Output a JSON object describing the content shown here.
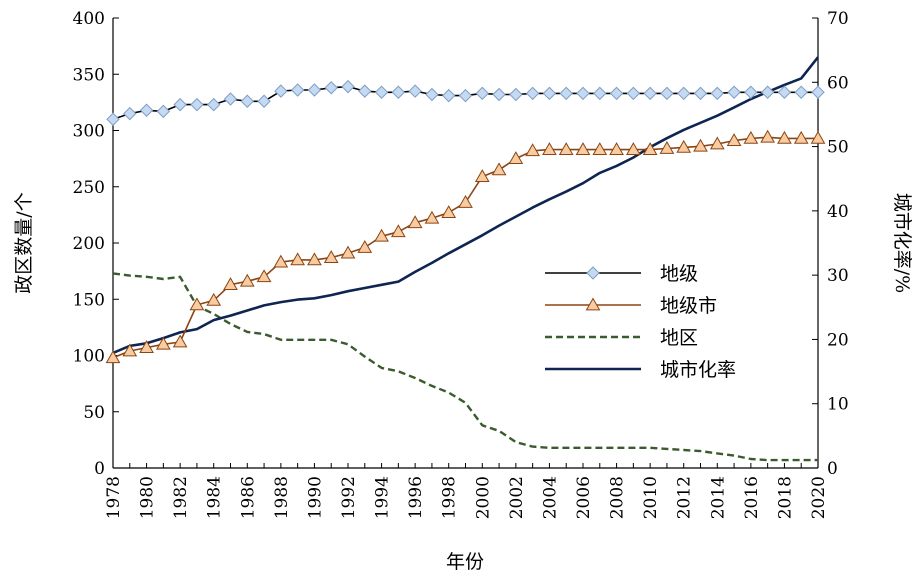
{
  "chart_data": {
    "type": "line",
    "title": "",
    "xlabel": "年份",
    "ylabel_left": "政区数量/个",
    "ylabel_right": "城市化率/%",
    "ylim_left": [
      0,
      400
    ],
    "ylim_right": [
      0,
      70
    ],
    "yticks_left": [
      0,
      50,
      100,
      150,
      200,
      250,
      300,
      350,
      400
    ],
    "yticks_right": [
      0,
      10,
      20,
      30,
      40,
      50,
      60,
      70
    ],
    "xlim": [
      1978,
      2020
    ],
    "xticks": [
      "1978",
      "1980",
      "1982",
      "1984",
      "1986",
      "1988",
      "1990",
      "1992",
      "1994",
      "1996",
      "1998",
      "2000",
      "2002",
      "2004",
      "2006",
      "2008",
      "2010",
      "2012",
      "2014",
      "2016",
      "2018",
      "2020"
    ],
    "grid": false,
    "legend_position": "center-right",
    "x": [
      1978,
      1979,
      1980,
      1981,
      1982,
      1983,
      1984,
      1985,
      1986,
      1987,
      1988,
      1989,
      1990,
      1991,
      1992,
      1993,
      1994,
      1995,
      1996,
      1997,
      1998,
      1999,
      2000,
      2001,
      2002,
      2003,
      2004,
      2005,
      2006,
      2007,
      2008,
      2009,
      2010,
      2011,
      2012,
      2013,
      2014,
      2015,
      2016,
      2017,
      2018,
      2019,
      2020
    ],
    "series": [
      {
        "name": "地级",
        "axis": "left",
        "color": "#000000",
        "marker": "diamond",
        "marker_fill": "#c5d9f1",
        "marker_stroke": "#7f9fc8",
        "dash": "solid",
        "values": [
          310,
          315,
          318,
          317,
          323,
          323,
          323,
          328,
          326,
          326,
          335,
          336,
          336,
          338,
          339,
          335,
          334,
          334,
          335,
          332,
          331,
          331,
          333,
          332,
          332,
          333,
          333,
          333,
          333,
          333,
          333,
          333,
          333,
          333,
          333,
          333,
          333,
          334,
          334,
          334,
          334,
          334,
          334
        ]
      },
      {
        "name": "地级市",
        "axis": "left",
        "color": "#8b4513",
        "marker": "triangle",
        "marker_fill": "#f8cba0",
        "marker_stroke": "#8b4513",
        "dash": "solid",
        "values": [
          98,
          104,
          107,
          110,
          112,
          145,
          149,
          163,
          166,
          170,
          183,
          185,
          185,
          187,
          191,
          196,
          206,
          210,
          218,
          222,
          227,
          236,
          259,
          265,
          275,
          282,
          283,
          283,
          283,
          283,
          283,
          283,
          283,
          284,
          285,
          286,
          288,
          291,
          293,
          294,
          293,
          293,
          293
        ]
      },
      {
        "name": "地区",
        "axis": "left",
        "color": "#3a5b2e",
        "marker": "none",
        "dash": "dashed",
        "values": [
          173,
          171,
          170,
          168,
          170,
          144,
          137,
          128,
          121,
          119,
          114,
          114,
          114,
          114,
          110,
          99,
          89,
          86,
          80,
          73,
          67,
          58,
          38,
          33,
          23,
          19,
          18,
          18,
          18,
          18,
          18,
          18,
          18,
          17,
          16,
          15,
          13,
          11,
          8,
          7,
          7,
          7,
          7
        ]
      },
      {
        "name": "城市化率",
        "axis": "right",
        "color": "#0e2552",
        "marker": "none",
        "dash": "solid",
        "values": [
          17.9,
          19.0,
          19.4,
          20.2,
          21.1,
          21.6,
          23.0,
          23.7,
          24.5,
          25.3,
          25.8,
          26.2,
          26.4,
          26.9,
          27.5,
          28.0,
          28.5,
          29.0,
          30.5,
          31.9,
          33.4,
          34.8,
          36.2,
          37.7,
          39.1,
          40.5,
          41.8,
          43.0,
          44.3,
          45.9,
          47.0,
          48.3,
          49.9,
          51.3,
          52.6,
          53.7,
          54.8,
          56.1,
          57.4,
          58.5,
          59.6,
          60.6,
          63.9
        ]
      }
    ]
  }
}
